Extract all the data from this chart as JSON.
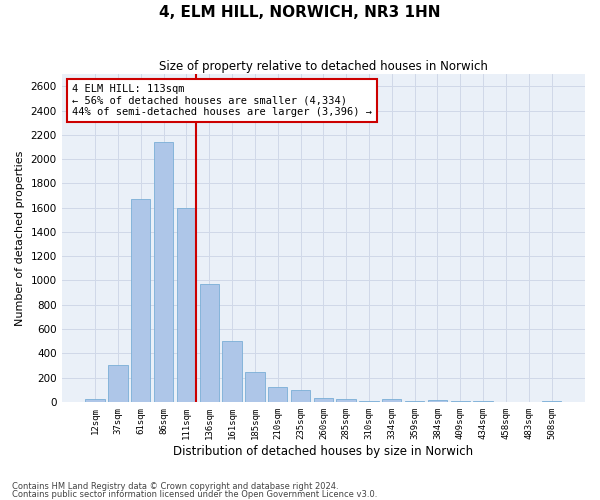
{
  "title": "4, ELM HILL, NORWICH, NR3 1HN",
  "subtitle": "Size of property relative to detached houses in Norwich",
  "xlabel": "Distribution of detached houses by size in Norwich",
  "ylabel": "Number of detached properties",
  "footnote1": "Contains HM Land Registry data © Crown copyright and database right 2024.",
  "footnote2": "Contains public sector information licensed under the Open Government Licence v3.0.",
  "bar_labels": [
    "12sqm",
    "37sqm",
    "61sqm",
    "86sqm",
    "111sqm",
    "136sqm",
    "161sqm",
    "185sqm",
    "210sqm",
    "235sqm",
    "260sqm",
    "285sqm",
    "310sqm",
    "334sqm",
    "359sqm",
    "384sqm",
    "409sqm",
    "434sqm",
    "458sqm",
    "483sqm",
    "508sqm"
  ],
  "bar_values": [
    20,
    300,
    1670,
    2140,
    1600,
    975,
    500,
    245,
    125,
    100,
    35,
    20,
    10,
    20,
    5,
    15,
    5,
    5,
    0,
    0,
    5
  ],
  "bar_color": "#aec6e8",
  "bar_edgecolor": "#7aaed6",
  "grid_color": "#d0d8e8",
  "background_color": "#eaf0f8",
  "marker_idx": 4,
  "marker_line_color": "#cc0000",
  "annotation_line1": "4 ELM HILL: 113sqm",
  "annotation_line2": "← 56% of detached houses are smaller (4,334)",
  "annotation_line3": "44% of semi-detached houses are larger (3,396) →",
  "annotation_box_edgecolor": "#cc0000",
  "ylim": [
    0,
    2700
  ],
  "yticks": [
    0,
    200,
    400,
    600,
    800,
    1000,
    1200,
    1400,
    1600,
    1800,
    2000,
    2200,
    2400,
    2600
  ]
}
